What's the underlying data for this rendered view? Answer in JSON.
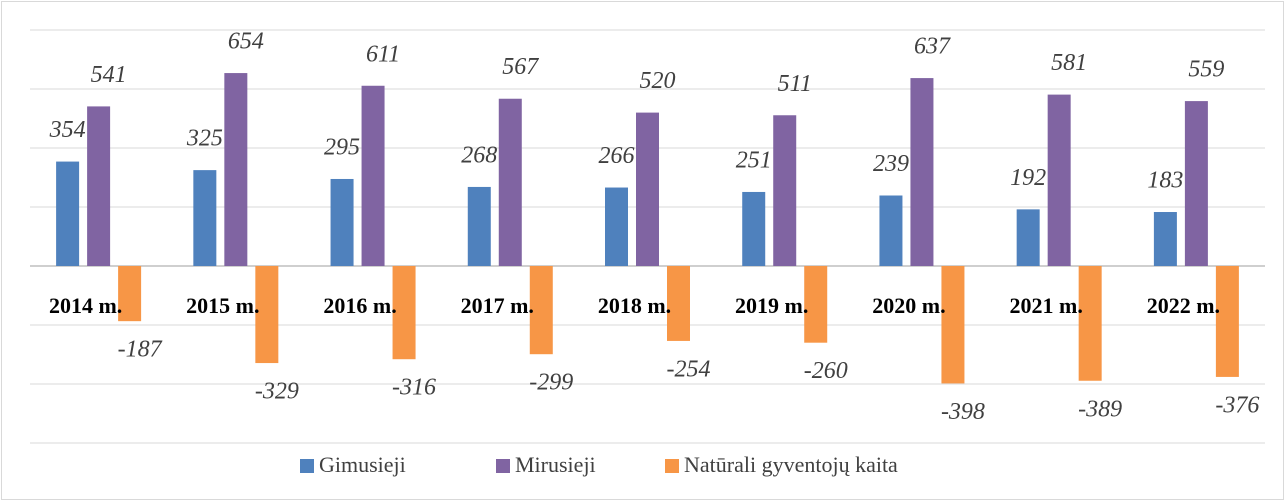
{
  "chart_data": {
    "type": "bar",
    "categories": [
      "2014 m.",
      "2015 m.",
      "2016 m.",
      "2017 m.",
      "2018 m.",
      "2019 m.",
      "2020 m.",
      "2021 m.",
      "2022 m."
    ],
    "series": [
      {
        "name": "Gimusieji",
        "color": "#4f81bd",
        "values": [
          354,
          325,
          295,
          268,
          266,
          251,
          239,
          192,
          183
        ]
      },
      {
        "name": "Mirusieji",
        "color": "#8064a2",
        "values": [
          541,
          654,
          611,
          567,
          520,
          511,
          637,
          581,
          559
        ]
      },
      {
        "name": "Natūrali gyventojų kaita",
        "color": "#f79646",
        "values": [
          -187,
          -329,
          -316,
          -299,
          -254,
          -260,
          -398,
          -389,
          -376
        ]
      }
    ],
    "ylim": [
      -600,
      800
    ],
    "yticks": [
      -600,
      -400,
      -200,
      0,
      200,
      400,
      600,
      800
    ],
    "grid": true,
    "legend": "bottom"
  }
}
